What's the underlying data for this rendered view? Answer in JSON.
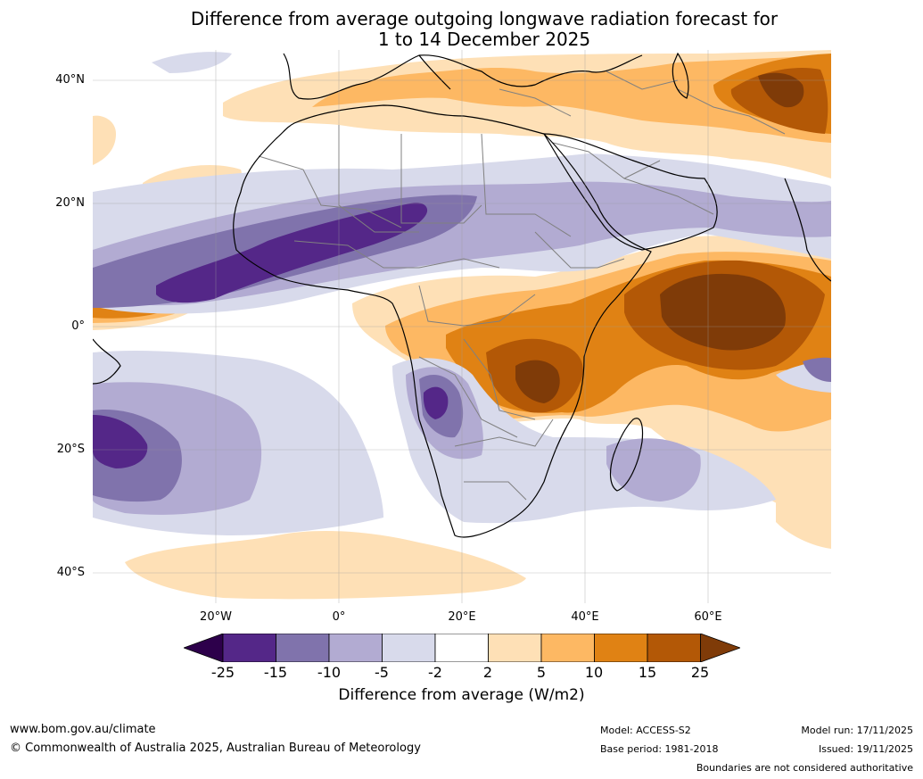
{
  "title_line1": "Difference from average outgoing longwave radiation forecast for",
  "title_line2": "1 to 14 December 2025",
  "lat_labels": [
    "40°N",
    "20°N",
    "0°",
    "20°S",
    "40°S"
  ],
  "lon_labels": [
    "20°W",
    "0°",
    "20°E",
    "40°E",
    "60°E"
  ],
  "colorbar": {
    "ticks": [
      "-25",
      "-15",
      "-10",
      "-5",
      "-2",
      "2",
      "5",
      "10",
      "15",
      "25"
    ],
    "label": "Difference from average (W/m2)",
    "colors": {
      "below_-25": "#2d004b",
      "-25_-15": "#542788",
      "-15_-10": "#8073ac",
      "-10_-5": "#b2abd2",
      "-5_-2": "#d8daeb",
      "-2_2": "#ffffff",
      "2_5": "#fee0b6",
      "5_10": "#fdb863",
      "10_15": "#e08214",
      "15_25": "#b35806",
      "above_25": "#7f3b08"
    }
  },
  "footer": {
    "url": "www.bom.gov.au/climate",
    "copyright": "© Commonwealth of Australia 2025, Australian Bureau of Meteorology",
    "model": "Model: ACCESS-S2",
    "base_period": "Base period: 1981-2018",
    "model_run": "Model run: 17/11/2025",
    "issued": "Issued: 19/11/2025",
    "disclaimer": "Boundaries are not considered authoritative"
  }
}
